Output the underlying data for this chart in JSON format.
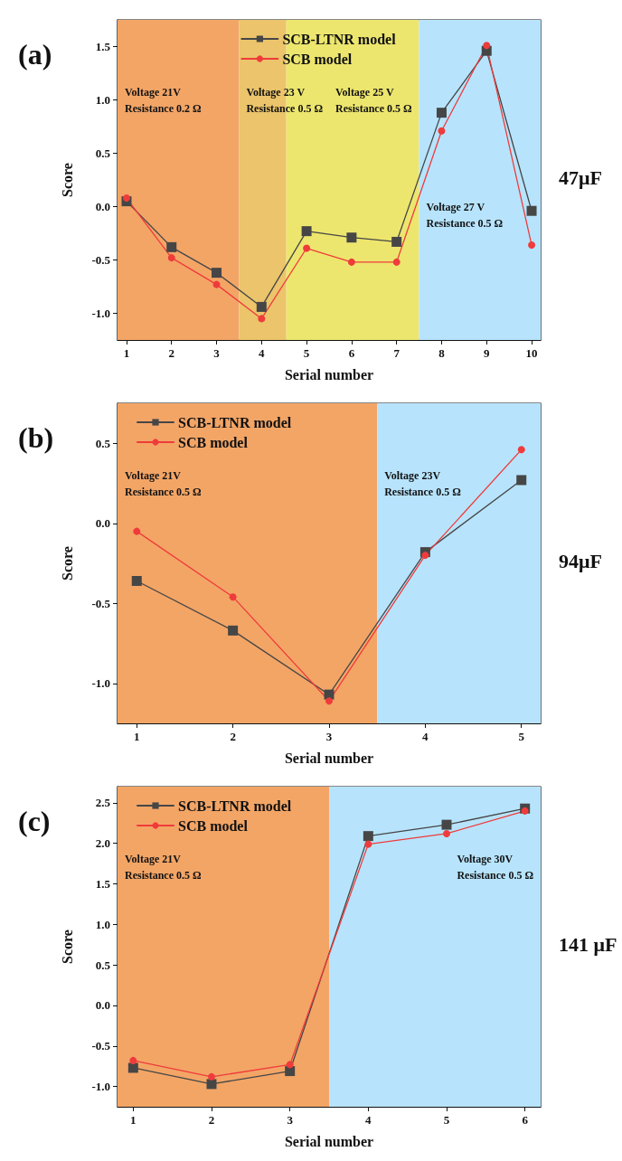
{
  "chart_data": [
    {
      "type": "line",
      "title": "(a)",
      "xlabel": "Serial number",
      "ylabel": "Score",
      "annotations": [
        "47μF"
      ],
      "x": [
        1,
        2,
        3,
        4,
        5,
        6,
        7,
        8,
        9,
        10
      ],
      "series": [
        {
          "name": "SCB-LTNR model",
          "color": "#464646",
          "marker": "square",
          "values": [
            0.05,
            -0.38,
            -0.62,
            -0.94,
            -0.23,
            -0.29,
            -0.33,
            0.88,
            1.46,
            -0.04
          ]
        },
        {
          "name": "SCB model",
          "color": "#ef3b3b",
          "marker": "circle",
          "values": [
            0.08,
            -0.48,
            -0.73,
            -1.05,
            -0.39,
            -0.52,
            -0.52,
            0.71,
            1.51,
            -0.36
          ]
        }
      ],
      "xlim": [
        0.8,
        10.2
      ],
      "xticks": [
        1,
        2,
        3,
        4,
        5,
        6,
        7,
        8,
        9,
        10
      ],
      "ylim": [
        -1.25,
        1.75
      ],
      "yticks": [
        {
          "value": -1,
          "label": "-1.0"
        },
        {
          "value": -0.5,
          "label": "-0.5"
        },
        {
          "value": 0,
          "label": "0.0"
        },
        {
          "value": 0.5,
          "label": "0.5"
        },
        {
          "value": 1,
          "label": "1.0"
        },
        {
          "value": 1.5,
          "label": "1.5"
        }
      ],
      "bands": [
        {
          "axis": "x",
          "from": 0.8,
          "to": 3.5,
          "label": "Voltage 21V\nResistance 0.2 Ω",
          "color": "#f3a566"
        },
        {
          "axis": "x",
          "from": 3.5,
          "to": 4.55,
          "label": "Voltage 23 V\nResistance 0.5 Ω",
          "color": "#ebc46b"
        },
        {
          "axis": "x",
          "from": 4.55,
          "to": 7.5,
          "label": "Voltage 25 V\nResistance 0.5 Ω",
          "color": "#ede66e"
        },
        {
          "axis": "x",
          "from": 7.5,
          "to": 10.2,
          "label": "Voltage 27 V\nResistance 0.5 Ω",
          "color": "#b7e4fc"
        }
      ],
      "legend": "top",
      "grid": false
    },
    {
      "type": "line",
      "title": "(b)",
      "xlabel": "Serial number",
      "ylabel": "Score",
      "annotations": [
        "94μF"
      ],
      "x": [
        1,
        2,
        3,
        4,
        5
      ],
      "series": [
        {
          "name": "SCB-LTNR model",
          "color": "#464646",
          "marker": "square",
          "values": [
            -0.36,
            -0.67,
            -1.07,
            -0.18,
            0.27
          ]
        },
        {
          "name": "SCB model",
          "color": "#ef3b3b",
          "marker": "circle",
          "values": [
            -0.05,
            -0.46,
            -1.11,
            -0.2,
            0.46
          ]
        }
      ],
      "xlim": [
        0.8,
        5.2
      ],
      "xticks": [
        1,
        2,
        3,
        4,
        5
      ],
      "ylim": [
        -1.25,
        0.75
      ],
      "yticks": [
        {
          "value": -1,
          "label": "-1.0"
        },
        {
          "value": -0.5,
          "label": "-0.5"
        },
        {
          "value": 0,
          "label": "0.0"
        },
        {
          "value": 0.5,
          "label": "0.5"
        }
      ],
      "bands": [
        {
          "axis": "x",
          "from": 0.8,
          "to": 3.5,
          "label": "Voltage 21V\nResistance 0.5 Ω",
          "color": "#f3a566"
        },
        {
          "axis": "x",
          "from": 3.5,
          "to": 5.2,
          "label": "Voltage 23V\nResistance 0.5 Ω",
          "color": "#b7e4fc"
        }
      ],
      "legend": "top left",
      "grid": false
    },
    {
      "type": "line",
      "title": "(c)",
      "xlabel": "Serial number",
      "ylabel": "Score",
      "annotations": [
        "141 μF"
      ],
      "x": [
        1,
        2,
        3,
        4,
        5,
        6
      ],
      "series": [
        {
          "name": "SCB-LTNR model",
          "color": "#464646",
          "marker": "square",
          "values": [
            -0.77,
            -0.97,
            -0.81,
            2.09,
            2.23,
            2.43
          ]
        },
        {
          "name": "SCB model",
          "color": "#ef3b3b",
          "marker": "circle",
          "values": [
            -0.68,
            -0.88,
            -0.73,
            1.99,
            2.12,
            2.4
          ]
        }
      ],
      "xlim": [
        0.8,
        6.2
      ],
      "xticks": [
        1,
        2,
        3,
        4,
        5,
        6
      ],
      "ylim": [
        -1.25,
        2.7
      ],
      "yticks": [
        {
          "value": -1,
          "label": "-1.0"
        },
        {
          "value": -0.5,
          "label": "-0.5"
        },
        {
          "value": 0,
          "label": "0.0"
        },
        {
          "value": 0.5,
          "label": "0.5"
        },
        {
          "value": 1,
          "label": "1.0"
        },
        {
          "value": 1.5,
          "label": "1.5"
        },
        {
          "value": 2,
          "label": "2.0"
        },
        {
          "value": 2.5,
          "label": "2.5"
        }
      ],
      "bands": [
        {
          "axis": "x",
          "from": 0.8,
          "to": 3.5,
          "label": "Voltage 21V\nResistance 0.5 Ω",
          "color": "#f3a566"
        },
        {
          "axis": "x",
          "from": 3.5,
          "to": 6.2,
          "label": "Voltage 30V\nResistance 0.5 Ω",
          "color": "#b7e4fc"
        }
      ],
      "legend": "top left",
      "grid": false
    }
  ]
}
